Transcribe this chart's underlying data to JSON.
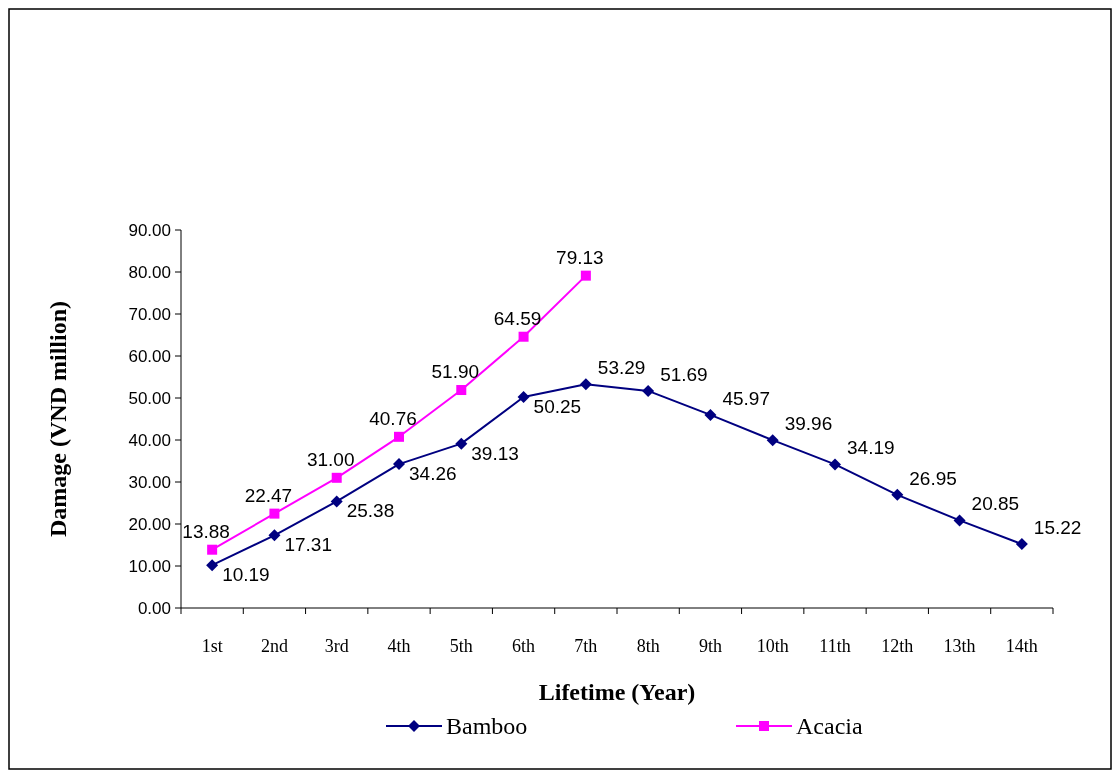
{
  "chart_data": {
    "type": "line",
    "xlabel": "Lifetime (Year)",
    "ylabel": "Damage (VND million)",
    "categories": [
      "1st",
      "2nd",
      "3rd",
      "4th",
      "5th",
      "6th",
      "7th",
      "8th",
      "9th",
      "10th",
      "11th",
      "12th",
      "13th",
      "14th"
    ],
    "series": [
      {
        "name": "Bamboo",
        "color": "#000080",
        "marker": "diamond",
        "values": [
          10.19,
          17.31,
          25.38,
          34.26,
          39.13,
          50.25,
          53.29,
          51.69,
          45.97,
          39.96,
          34.19,
          26.95,
          20.85,
          15.22
        ],
        "value_labels": [
          "10.19",
          "17.31",
          "25.38",
          "34.26",
          "39.13",
          "50.25",
          "53.29",
          "51.69",
          "45.97",
          "39.96",
          "34.19",
          "26.95",
          "20.85",
          "15.22"
        ]
      },
      {
        "name": "Acacia",
        "color": "#ff00ff",
        "marker": "square",
        "values": [
          13.88,
          22.47,
          31.0,
          40.76,
          51.9,
          64.59,
          79.13,
          null,
          null,
          null,
          null,
          null,
          null,
          null
        ],
        "value_labels": [
          "13.88",
          "22.47",
          "31.00",
          "40.76",
          "51.90",
          "64.59",
          "79.13",
          null,
          null,
          null,
          null,
          null,
          null,
          null
        ]
      }
    ],
    "ylim": [
      0,
      90
    ],
    "yticks": [
      {
        "value": 0,
        "label": "0.00"
      },
      {
        "value": 10,
        "label": "10.00"
      },
      {
        "value": 20,
        "label": "20.00"
      },
      {
        "value": 30,
        "label": "30.00"
      },
      {
        "value": 40,
        "label": "40.00"
      },
      {
        "value": 50,
        "label": "50.00"
      },
      {
        "value": 60,
        "label": "60.00"
      },
      {
        "value": 70,
        "label": "70.00"
      },
      {
        "value": 80,
        "label": "80.00"
      },
      {
        "value": 90,
        "label": "90.00"
      }
    ],
    "grid": false,
    "legend": "bottom"
  }
}
